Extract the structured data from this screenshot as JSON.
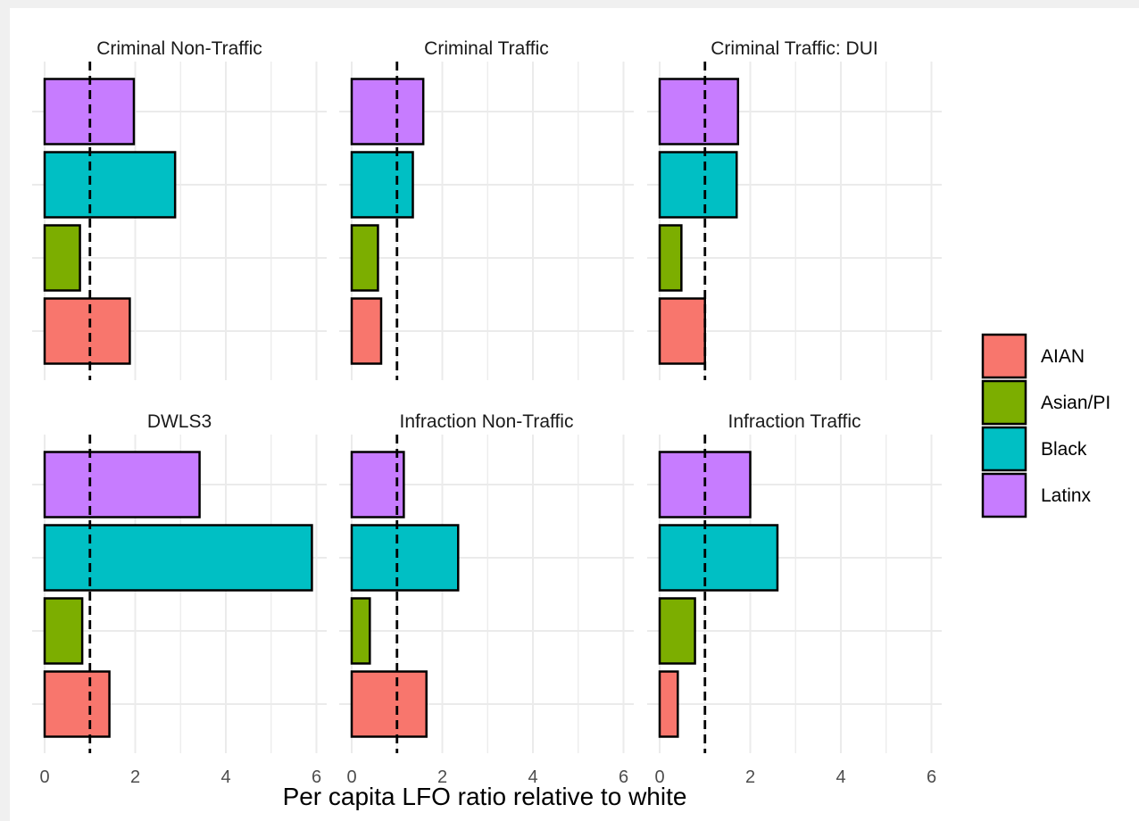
{
  "chart_data": {
    "type": "bar",
    "orientation": "horizontal",
    "facets": [
      {
        "title": "Criminal Non-Traffic",
        "values": {
          "AIAN": 1.88,
          "Asian/PI": 0.78,
          "Black": 2.88,
          "Latinx": 1.97
        }
      },
      {
        "title": "Criminal Traffic",
        "values": {
          "AIAN": 0.65,
          "Asian/PI": 0.58,
          "Black": 1.35,
          "Latinx": 1.58
        }
      },
      {
        "title": "Criminal Traffic: DUI",
        "values": {
          "AIAN": 1.0,
          "Asian/PI": 0.48,
          "Black": 1.7,
          "Latinx": 1.73
        }
      },
      {
        "title": "DWLS3",
        "values": {
          "AIAN": 1.43,
          "Asian/PI": 0.83,
          "Black": 5.9,
          "Latinx": 3.42
        }
      },
      {
        "title": "Infraction Non-Traffic",
        "values": {
          "AIAN": 1.65,
          "Asian/PI": 0.4,
          "Black": 2.35,
          "Latinx": 1.15
        }
      },
      {
        "title": "Infraction Traffic",
        "values": {
          "AIAN": 0.4,
          "Asian/PI": 0.78,
          "Black": 2.6,
          "Latinx": 2.0
        }
      }
    ],
    "categories": [
      "AIAN",
      "Asian/PI",
      "Black",
      "Latinx"
    ],
    "colors": {
      "AIAN": "#F8766D",
      "Asian/PI": "#7CAE00",
      "Black": "#00BFC4",
      "Latinx": "#C77CFF"
    },
    "xlabel": "Per capita LFO ratio relative to white",
    "ylabel": "",
    "xlim": [
      0,
      6.5
    ],
    "xticks": [
      0,
      2,
      4,
      6
    ],
    "xtick_labels": [
      "0",
      "2",
      "4",
      "6"
    ],
    "reference_line": {
      "x": 1,
      "style": "dashed",
      "color": "#000000"
    },
    "grid": true,
    "legend": {
      "position": "right",
      "entries": [
        "AIAN",
        "Asian/PI",
        "Black",
        "Latinx"
      ]
    }
  }
}
